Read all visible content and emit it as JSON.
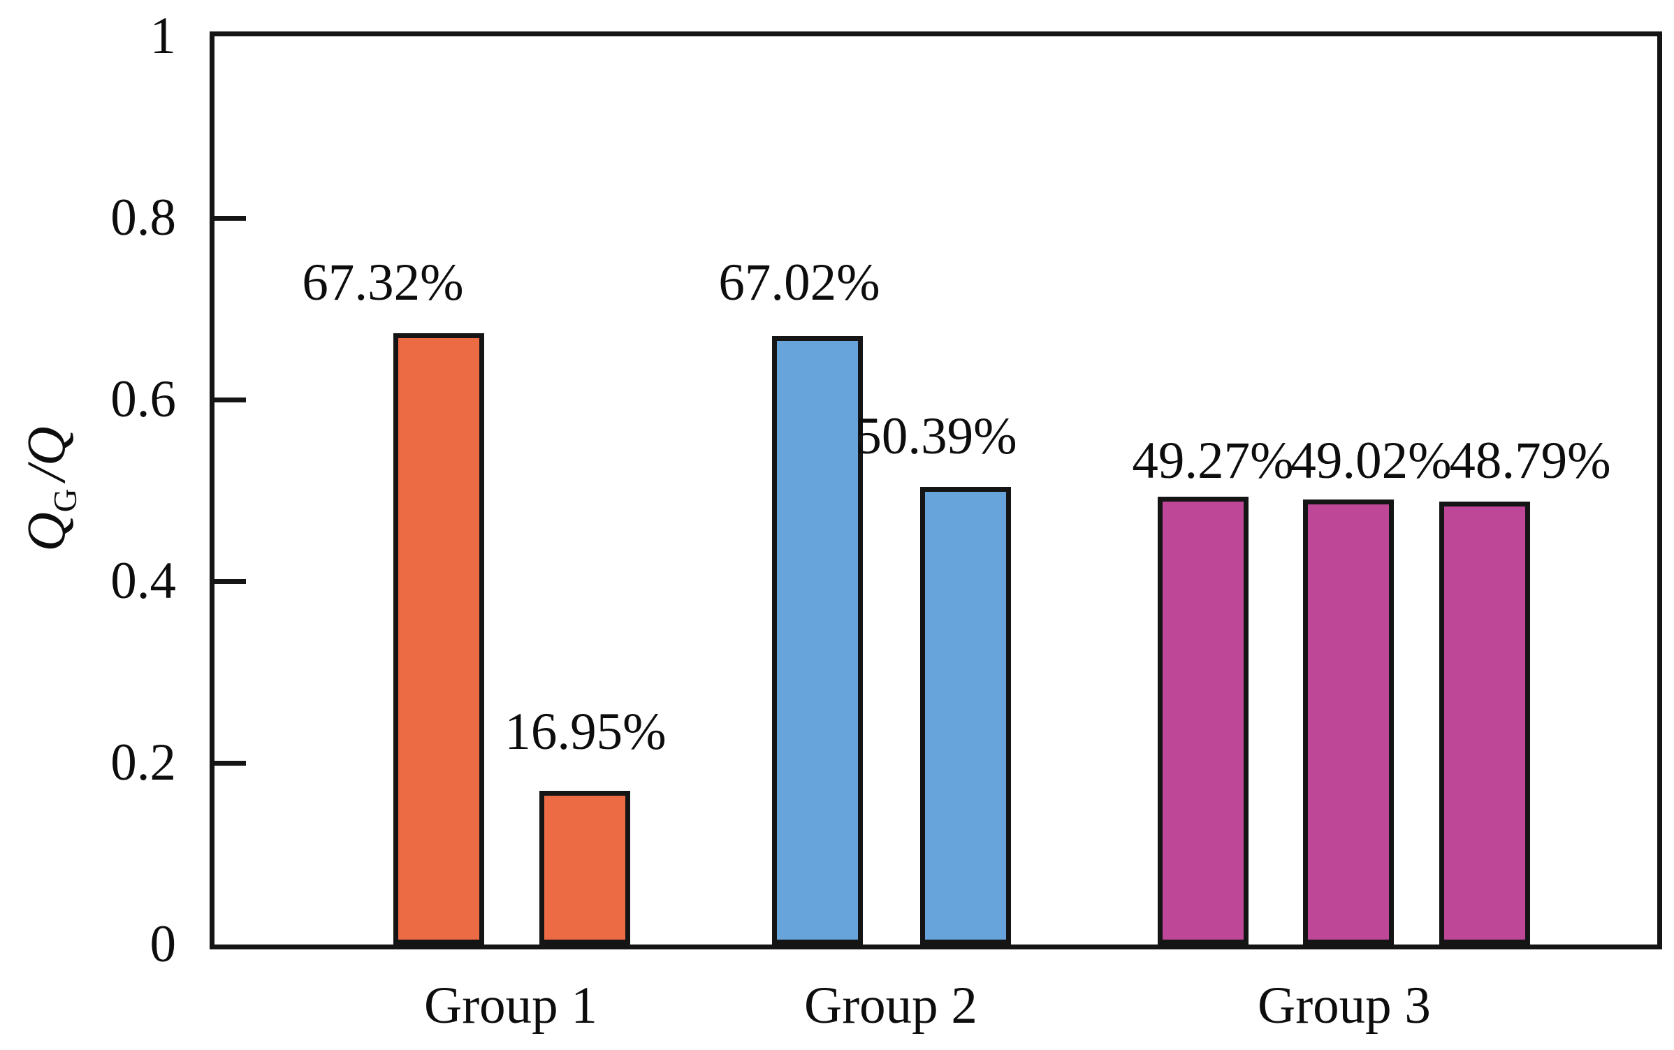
{
  "chart_data": {
    "type": "bar",
    "title": "",
    "xlabel": "",
    "ylabel": "Q_G/Q",
    "ylabel_parts": {
      "numerator": "Q",
      "numerator_sub": "G",
      "separator": "/",
      "denominator": "Q"
    },
    "ylim": [
      0,
      1
    ],
    "ytick_step": 0.2,
    "yticks": [
      {
        "value": 1,
        "label": "1"
      },
      {
        "value": 0.8,
        "label": "0.8"
      },
      {
        "value": 0.6,
        "label": "0.6"
      },
      {
        "value": 0.4,
        "label": "0.4"
      },
      {
        "value": 0.2,
        "label": "0.2"
      },
      {
        "value": 0,
        "label": "0"
      }
    ],
    "grid": false,
    "legend": false,
    "tick_direction": "in",
    "axis_color": "#151515",
    "bar_border_color": "#151515",
    "background_color": "#ffffff",
    "categories": [
      "Group 1",
      "Group 2",
      "Group 3"
    ],
    "groups": [
      {
        "label": "Group 1",
        "color": "#EC6A44",
        "bars": [
          {
            "value": 0.6732,
            "label": "67.32%"
          },
          {
            "value": 0.1695,
            "label": "16.95%"
          }
        ]
      },
      {
        "label": "Group 2",
        "color": "#66A4DB",
        "bars": [
          {
            "value": 0.6702,
            "label": "67.02%"
          },
          {
            "value": 0.5039,
            "label": "50.39%"
          }
        ]
      },
      {
        "label": "Group 3",
        "color": "#BE4797",
        "bars": [
          {
            "value": 0.4927,
            "label": "49.27%"
          },
          {
            "value": 0.4902,
            "label": "49.02%"
          },
          {
            "value": 0.4879,
            "label": "48.79%"
          }
        ]
      }
    ]
  }
}
